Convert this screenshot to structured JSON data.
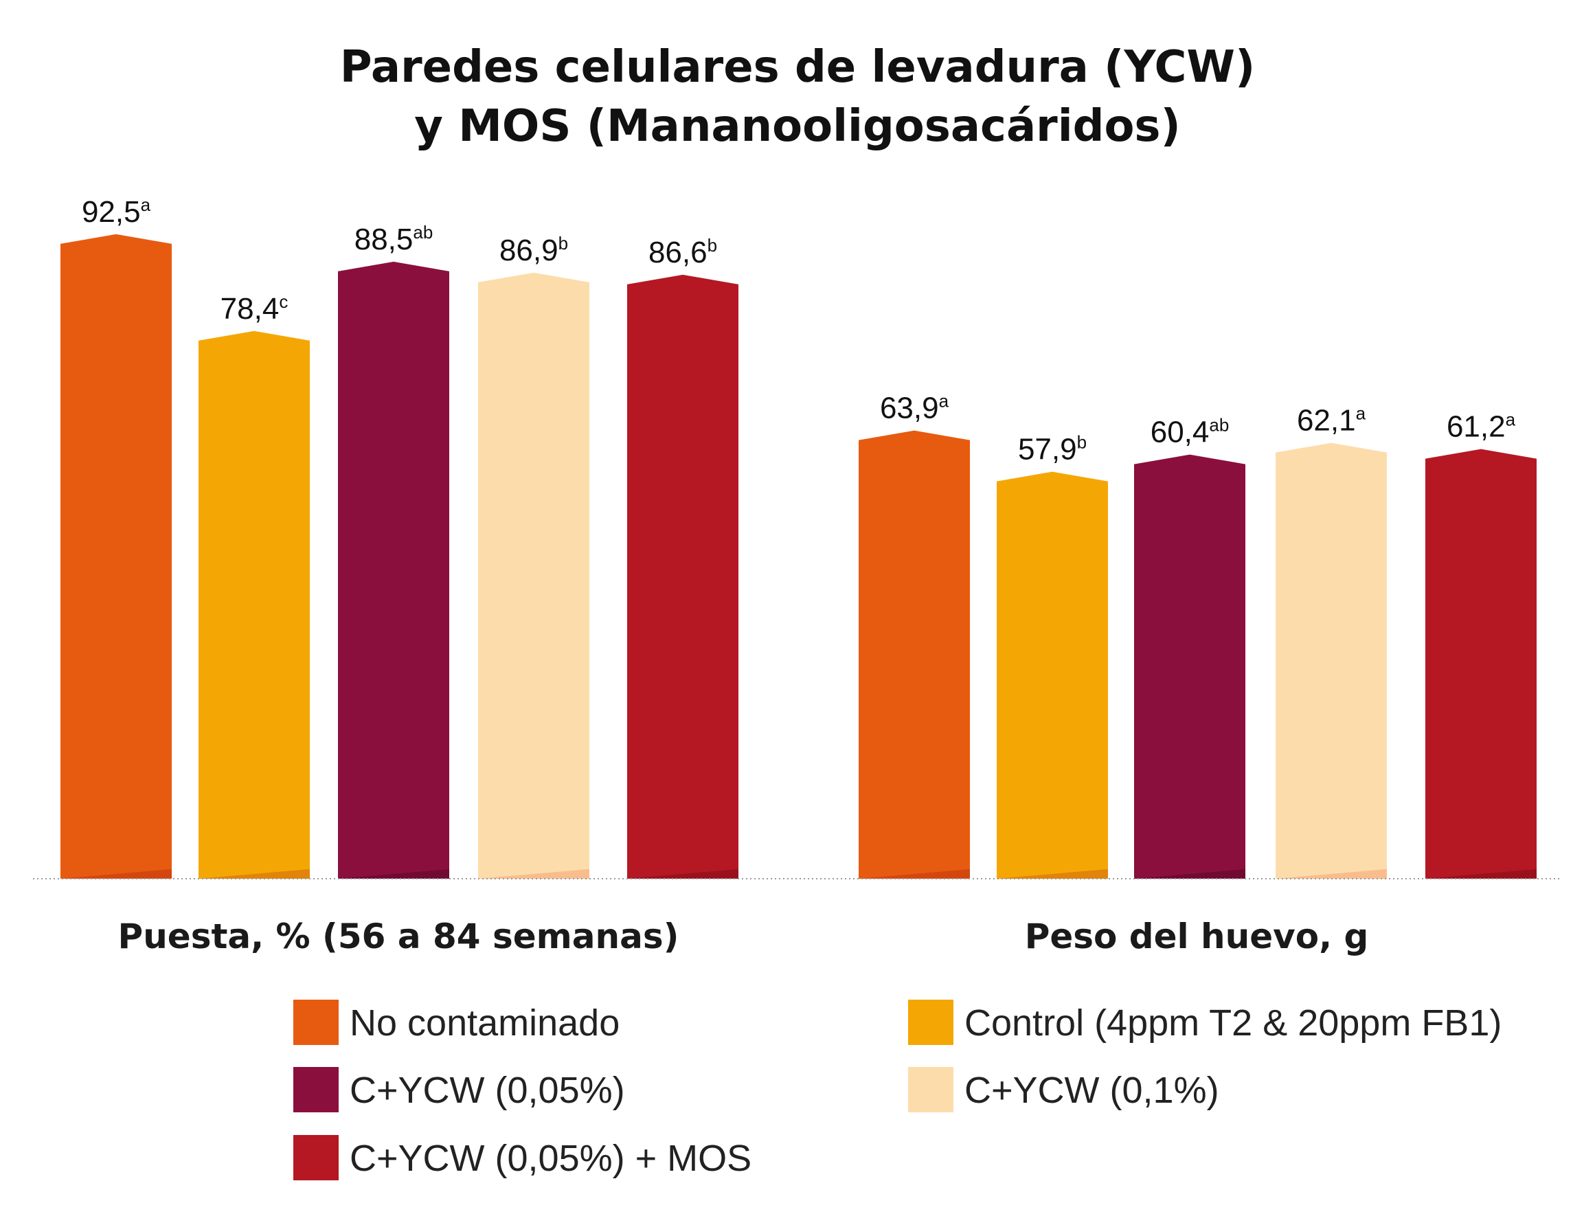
{
  "chart_data": {
    "type": "bar",
    "title": [
      "Paredes celulares de levadura (YCW)",
      "y MOS (Mananooligosacáridos)"
    ],
    "groups": [
      {
        "label": "Puesta, % (56 a 84 semanas)",
        "bars": [
          {
            "series": "No contaminado",
            "value": 92.5,
            "text": "92,5",
            "letter": "a"
          },
          {
            "series": "Control (4ppm T2 & 20ppm FB1)",
            "value": 78.4,
            "text": "78,4",
            "letter": "c"
          },
          {
            "series": "C+YCW (0,05%)",
            "value": 88.5,
            "text": "88,5",
            "letter": "ab"
          },
          {
            "series": "C+YCW (0,1%)",
            "value": 86.9,
            "text": "86,9",
            "letter": "b"
          },
          {
            "series": "C+YCW (0,05%) + MOS",
            "value": 86.6,
            "text": "86,6",
            "letter": "b"
          }
        ]
      },
      {
        "label": "Peso del huevo, g",
        "bars": [
          {
            "series": "No contaminado",
            "value": 63.9,
            "text": "63,9",
            "letter": "a"
          },
          {
            "series": "Control (4ppm T2 & 20ppm FB1)",
            "value": 57.9,
            "text": "57,9",
            "letter": "b"
          },
          {
            "series": "C+YCW (0,05%)",
            "value": 60.4,
            "text": "60,4",
            "letter": "ab"
          },
          {
            "series": "C+YCW (0,1%)",
            "value": 62.1,
            "text": "62,1",
            "letter": "a"
          },
          {
            "series": "C+YCW (0,05%) + MOS",
            "value": 61.2,
            "text": "61,2",
            "letter": "a"
          }
        ]
      }
    ],
    "series": [
      {
        "name": "No contaminado",
        "color": "#e75b11",
        "shade": "#d04510"
      },
      {
        "name": "Control (4ppm T2 & 20ppm FB1)",
        "color": "#f4a704",
        "shade": "#e0800c"
      },
      {
        "name": "C+YCW (0,05%)",
        "color": "#8b0f3d",
        "shade": "#6e0a2f"
      },
      {
        "name": "C+YCW (0,1%)",
        "color": "#fddcab",
        "shade": "#f8b98a"
      },
      {
        "name": "C+YCW (0,05%) + MOS",
        "color": "#b51823",
        "shade": "#96111c"
      }
    ],
    "legend": {
      "position": "bottom",
      "order": [
        "No contaminado",
        "Control (4ppm T2 & 20ppm FB1)",
        "C+YCW (0,05%)",
        "C+YCW (0,1%)",
        "C+YCW (0,05%) + MOS"
      ]
    },
    "grid": false
  }
}
